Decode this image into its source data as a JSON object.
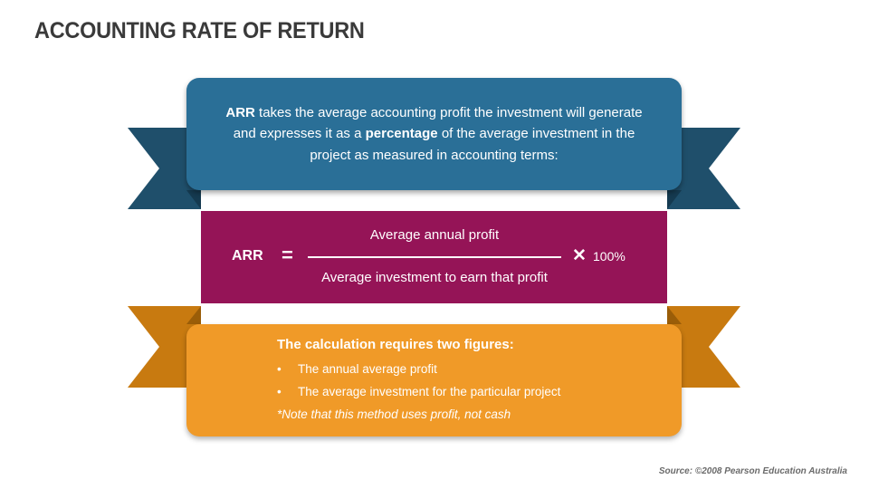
{
  "title": "ACCOUNTING RATE OF RETURN",
  "definition": {
    "parts": [
      {
        "text": "ARR",
        "bold": true
      },
      {
        "text": " takes the average accounting profit the investment will generate and expresses it as a ",
        "bold": false
      },
      {
        "text": "percentage",
        "bold": true
      },
      {
        "text": " of the average investment in the project as measured in accounting terms:",
        "bold": false
      }
    ]
  },
  "formula": {
    "lhs": "ARR",
    "equals": "=",
    "numerator": "Average annual profit",
    "denominator": "Average investment to earn that profit",
    "times": "✕",
    "multiplier": "100%"
  },
  "figures": {
    "heading": "The calculation requires two figures:",
    "bullet_symbol": "•",
    "items": [
      "The annual average profit",
      "The average investment for the particular project"
    ],
    "note": "*Note that this method uses profit, not cash"
  },
  "source": "Source: ©2008 Pearson Education Australia",
  "colors": {
    "blue": "#2a6f97",
    "blue_dark": "#1f4f6b",
    "magenta": "#951457",
    "orange": "#f09a28",
    "orange_dark": "#c87a10"
  }
}
